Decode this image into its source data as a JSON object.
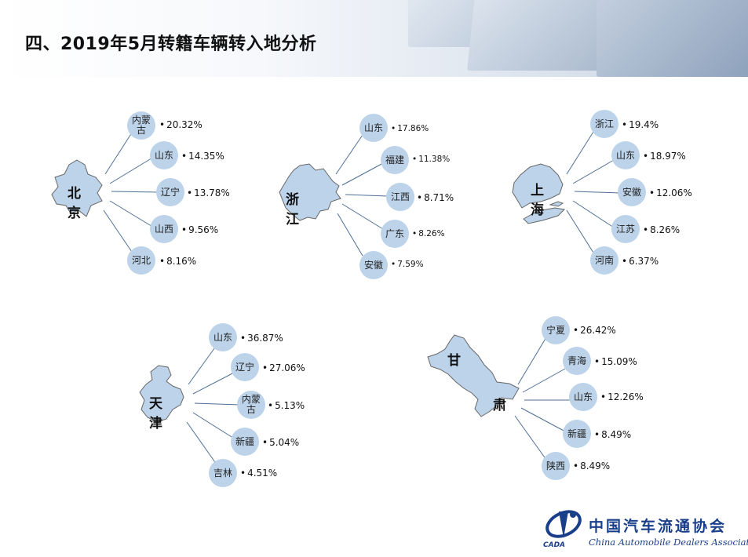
{
  "title": "四、2019年5月转籍车辆转入地分析",
  "regions": [
    {
      "name": "北京",
      "destinations": [
        {
          "label": "内蒙古",
          "pct": "20.32%"
        },
        {
          "label": "山东",
          "pct": "14.35%"
        },
        {
          "label": "辽宁",
          "pct": "13.78%"
        },
        {
          "label": "山西",
          "pct": "9.56%"
        },
        {
          "label": "河北",
          "pct": "8.16%"
        }
      ]
    },
    {
      "name": "浙江",
      "destinations": [
        {
          "label": "山东",
          "pct": "17.86%"
        },
        {
          "label": "福建",
          "pct": "11.38%"
        },
        {
          "label": "江西",
          "pct": "8.71%"
        },
        {
          "label": "广东",
          "pct": "8.26%"
        },
        {
          "label": "安徽",
          "pct": "7.59%"
        }
      ]
    },
    {
      "name": "上海",
      "destinations": [
        {
          "label": "浙江",
          "pct": "19.4%"
        },
        {
          "label": "山东",
          "pct": "18.97%"
        },
        {
          "label": "安徽",
          "pct": "12.06%"
        },
        {
          "label": "江苏",
          "pct": "8.26%"
        },
        {
          "label": "河南",
          "pct": "6.37%"
        }
      ]
    },
    {
      "name": "天津",
      "destinations": [
        {
          "label": "山东",
          "pct": "36.87%"
        },
        {
          "label": "辽宁",
          "pct": "27.06%"
        },
        {
          "label": "内蒙古",
          "pct": "5.13%"
        },
        {
          "label": "新疆",
          "pct": "5.04%"
        },
        {
          "label": "吉林",
          "pct": "4.51%"
        }
      ]
    },
    {
      "name_top": "甘",
      "name_bottom": "肃",
      "destinations": [
        {
          "label": "宁夏",
          "pct": "26.42%"
        },
        {
          "label": "青海",
          "pct": "15.09%"
        },
        {
          "label": "山东",
          "pct": "12.26%"
        },
        {
          "label": "新疆",
          "pct": "8.49%"
        },
        {
          "label": "陕西",
          "pct": "8.49%"
        }
      ]
    }
  ],
  "logo": {
    "cn": "中国汽车流通协会",
    "en": "China Automobile Dealers Association",
    "abbr": "CADA"
  },
  "colors": {
    "node": "#bcd3ea",
    "map": "#bcd3ea",
    "line": "#4d6f94",
    "brand": "#1a3f8a"
  }
}
